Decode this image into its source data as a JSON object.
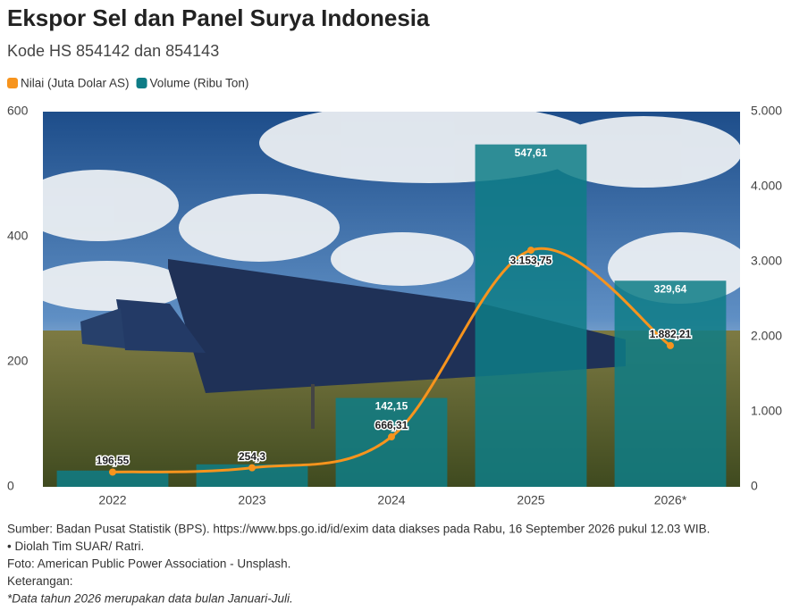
{
  "chart_data": {
    "type": "bar",
    "title": "Ekspor Sel dan Panel Surya Indonesia",
    "subtitle": "Kode HS 854142 dan 854143",
    "categories": [
      "2022",
      "2023",
      "2024",
      "2025",
      "2026*"
    ],
    "series": [
      {
        "name": "Nilai (Juta Dolar AS)",
        "type": "line",
        "axis": "y2",
        "color": "#f7941d",
        "values": [
          196.55,
          254.3,
          666.31,
          3153.75,
          1882.21
        ],
        "value_labels": [
          "196,55",
          "254,3",
          "666,31",
          "3.153,75",
          "1.882,21"
        ]
      },
      {
        "name": "Volume (Ribu Ton)",
        "type": "bar",
        "color": "#0e7c86",
        "values": [
          26,
          36,
          142.15,
          547.61,
          329.64
        ],
        "value_labels": [
          null,
          null,
          "142,15",
          "547,61",
          "329,64"
        ]
      }
    ],
    "ylim": [
      0,
      600
    ],
    "yticks": [
      0,
      200,
      400,
      600
    ],
    "y2lim": [
      0,
      5000
    ],
    "y2ticks": [
      0,
      {
        "value": 1000,
        "label": "1.000"
      },
      {
        "value": 2000,
        "label": "2.000"
      },
      {
        "value": 3000,
        "label": "3.000"
      },
      {
        "value": 4000,
        "label": "4.000"
      },
      {
        "value": 5000,
        "label": "5.000"
      }
    ],
    "legend": "top-left"
  },
  "notes": [
    "Sumber: Badan Pusat Statistik (BPS). https://www.bps.go.id/id/exim data diakses pada Rabu, 16 September 2026 pukul 12.03 WIB.",
    "• Diolah Tim SUAR/ Ratri.",
    "Foto: American Public Power Association - Unsplash.",
    "Keterangan:",
    "*Data tahun 2026 merupakan data bulan Januari-Juli."
  ]
}
